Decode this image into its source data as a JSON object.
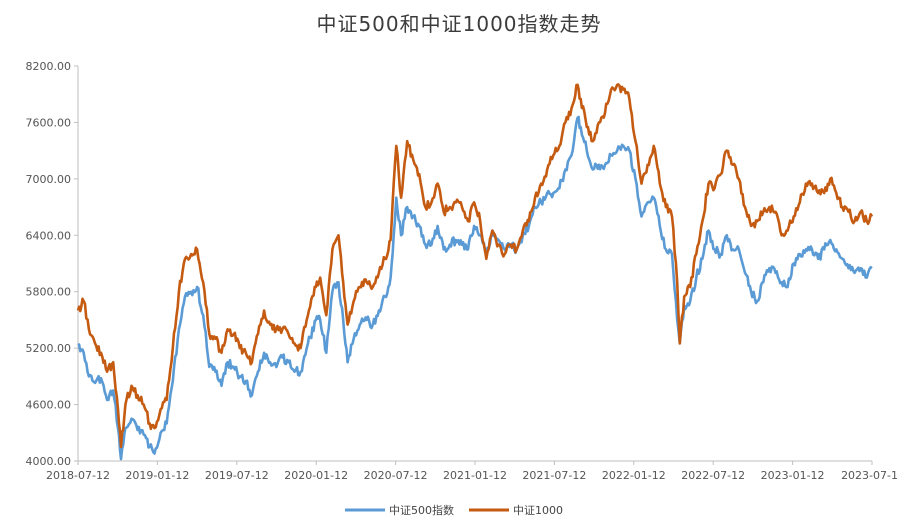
{
  "chart_data": {
    "type": "line",
    "title": "中证500和中证1000指数走势",
    "xlabel": "",
    "ylabel": "",
    "ylim": [
      4000,
      8200
    ],
    "y_ticks": [
      "8200.00",
      "7600.00",
      "7000.00",
      "6400.00",
      "5800.00",
      "5200.00",
      "4600.00",
      "4000.00"
    ],
    "y_tick_values": [
      8200,
      7600,
      7000,
      6400,
      5800,
      5200,
      4600,
      4000
    ],
    "x_ticks": [
      "2018-07-12",
      "2019-01-12",
      "2019-07-12",
      "2020-01-12",
      "2020-07-12",
      "2021-01-12",
      "2021-07-12",
      "2022-01-12",
      "2022-07-12",
      "2023-01-12",
      "2023-07-1"
    ],
    "xlim": [
      "2018-07-12",
      "2023-07-12"
    ],
    "grid": false,
    "legend_position": "bottom",
    "series": [
      {
        "name": "中证500指数",
        "color": "#5b9bd5",
        "points": [
          [
            "2018-07-12",
            5230
          ],
          [
            "2018-07-25",
            5150
          ],
          [
            "2018-08-06",
            4900
          ],
          [
            "2018-08-20",
            4830
          ],
          [
            "2018-09-03",
            4880
          ],
          [
            "2018-09-17",
            4650
          ],
          [
            "2018-10-01",
            4750
          ],
          [
            "2018-10-12",
            4350
          ],
          [
            "2018-10-19",
            4020
          ],
          [
            "2018-10-29",
            4350
          ],
          [
            "2018-11-12",
            4450
          ],
          [
            "2018-11-26",
            4330
          ],
          [
            "2018-12-10",
            4280
          ],
          [
            "2018-12-24",
            4150
          ],
          [
            "2019-01-04",
            4080
          ],
          [
            "2019-01-18",
            4300
          ],
          [
            "2019-02-01",
            4400
          ],
          [
            "2019-02-15",
            4850
          ],
          [
            "2019-03-01",
            5400
          ],
          [
            "2019-03-15",
            5750
          ],
          [
            "2019-03-29",
            5800
          ],
          [
            "2019-04-12",
            5850
          ],
          [
            "2019-04-26",
            5550
          ],
          [
            "2019-05-10",
            5000
          ],
          [
            "2019-05-24",
            4950
          ],
          [
            "2019-06-07",
            4800
          ],
          [
            "2019-06-21",
            5050
          ],
          [
            "2019-07-05",
            5000
          ],
          [
            "2019-07-19",
            4900
          ],
          [
            "2019-08-02",
            4850
          ],
          [
            "2019-08-16",
            4700
          ],
          [
            "2019-08-30",
            4950
          ],
          [
            "2019-09-13",
            5150
          ],
          [
            "2019-09-27",
            5050
          ],
          [
            "2019-10-11",
            5000
          ],
          [
            "2019-10-25",
            5100
          ],
          [
            "2019-11-08",
            5050
          ],
          [
            "2019-11-22",
            4950
          ],
          [
            "2019-12-06",
            4950
          ],
          [
            "2019-12-20",
            5200
          ],
          [
            "2020-01-10",
            5500
          ],
          [
            "2020-01-20",
            5500
          ],
          [
            "2020-02-03",
            5150
          ],
          [
            "2020-02-17",
            5800
          ],
          [
            "2020-03-02",
            5900
          ],
          [
            "2020-03-13",
            5500
          ],
          [
            "2020-03-23",
            5050
          ],
          [
            "2020-04-06",
            5300
          ],
          [
            "2020-04-20",
            5450
          ],
          [
            "2020-05-06",
            5500
          ],
          [
            "2020-05-20",
            5450
          ],
          [
            "2020-06-03",
            5600
          ],
          [
            "2020-06-17",
            5750
          ],
          [
            "2020-06-30",
            5950
          ],
          [
            "2020-07-07",
            6400
          ],
          [
            "2020-07-13",
            6800
          ],
          [
            "2020-07-24",
            6400
          ],
          [
            "2020-08-07",
            6700
          ],
          [
            "2020-08-21",
            6600
          ],
          [
            "2020-09-04",
            6500
          ],
          [
            "2020-09-18",
            6300
          ],
          [
            "2020-10-02",
            6300
          ],
          [
            "2020-10-16",
            6500
          ],
          [
            "2020-10-30",
            6250
          ],
          [
            "2020-11-13",
            6300
          ],
          [
            "2020-11-27",
            6350
          ],
          [
            "2020-12-11",
            6300
          ],
          [
            "2020-12-25",
            6250
          ],
          [
            "2021-01-08",
            6500
          ],
          [
            "2021-01-22",
            6400
          ],
          [
            "2021-02-05",
            6200
          ],
          [
            "2021-02-19",
            6450
          ],
          [
            "2021-03-05",
            6350
          ],
          [
            "2021-03-19",
            6250
          ],
          [
            "2021-04-02",
            6300
          ],
          [
            "2021-04-16",
            6250
          ],
          [
            "2021-04-30",
            6400
          ],
          [
            "2021-05-14",
            6500
          ],
          [
            "2021-05-28",
            6700
          ],
          [
            "2021-06-11",
            6750
          ],
          [
            "2021-06-25",
            6850
          ],
          [
            "2021-07-09",
            6850
          ],
          [
            "2021-07-23",
            6900
          ],
          [
            "2021-08-06",
            7100
          ],
          [
            "2021-08-20",
            7250
          ],
          [
            "2021-09-03",
            7650
          ],
          [
            "2021-09-10",
            7550
          ],
          [
            "2021-09-24",
            7300
          ],
          [
            "2021-10-08",
            7100
          ],
          [
            "2021-10-22",
            7150
          ],
          [
            "2021-11-05",
            7150
          ],
          [
            "2021-11-19",
            7250
          ],
          [
            "2021-12-03",
            7300
          ],
          [
            "2021-12-17",
            7350
          ],
          [
            "2021-12-31",
            7300
          ],
          [
            "2022-01-14",
            7000
          ],
          [
            "2022-01-28",
            6600
          ],
          [
            "2022-02-11",
            6750
          ],
          [
            "2022-02-25",
            6800
          ],
          [
            "2022-03-11",
            6500
          ],
          [
            "2022-03-25",
            6250
          ],
          [
            "2022-04-08",
            6200
          ],
          [
            "2022-04-20",
            5500
          ],
          [
            "2022-04-26",
            5250
          ],
          [
            "2022-05-06",
            5650
          ],
          [
            "2022-05-20",
            5700
          ],
          [
            "2022-06-03",
            5950
          ],
          [
            "2022-06-17",
            6150
          ],
          [
            "2022-07-01",
            6450
          ],
          [
            "2022-07-15",
            6250
          ],
          [
            "2022-07-29",
            6200
          ],
          [
            "2022-08-12",
            6400
          ],
          [
            "2022-08-26",
            6250
          ],
          [
            "2022-09-09",
            6250
          ],
          [
            "2022-09-23",
            6000
          ],
          [
            "2022-10-07",
            5800
          ],
          [
            "2022-10-21",
            5700
          ],
          [
            "2022-11-04",
            5900
          ],
          [
            "2022-11-18",
            6050
          ],
          [
            "2022-12-02",
            6000
          ],
          [
            "2022-12-16",
            5900
          ],
          [
            "2022-12-30",
            5850
          ],
          [
            "2023-01-13",
            6100
          ],
          [
            "2023-01-27",
            6200
          ],
          [
            "2023-02-10",
            6250
          ],
          [
            "2023-02-24",
            6250
          ],
          [
            "2023-03-10",
            6150
          ],
          [
            "2023-03-24",
            6250
          ],
          [
            "2023-04-07",
            6350
          ],
          [
            "2023-04-21",
            6250
          ],
          [
            "2023-05-05",
            6150
          ],
          [
            "2023-05-19",
            6050
          ],
          [
            "2023-06-02",
            6000
          ],
          [
            "2023-06-16",
            6050
          ],
          [
            "2023-06-30",
            5950
          ],
          [
            "2023-07-12",
            6050
          ]
        ]
      },
      {
        "name": "中证1000",
        "color": "#c55a11",
        "points": [
          [
            "2018-07-12",
            5600
          ],
          [
            "2018-07-25",
            5700
          ],
          [
            "2018-08-06",
            5400
          ],
          [
            "2018-08-20",
            5250
          ],
          [
            "2018-09-03",
            5150
          ],
          [
            "2018-09-17",
            4950
          ],
          [
            "2018-10-01",
            5050
          ],
          [
            "2018-10-12",
            4550
          ],
          [
            "2018-10-19",
            4150
          ],
          [
            "2018-10-29",
            4600
          ],
          [
            "2018-11-12",
            4800
          ],
          [
            "2018-11-26",
            4700
          ],
          [
            "2018-12-10",
            4600
          ],
          [
            "2018-12-24",
            4400
          ],
          [
            "2019-01-04",
            4350
          ],
          [
            "2019-01-18",
            4550
          ],
          [
            "2019-02-01",
            4650
          ],
          [
            "2019-02-15",
            5200
          ],
          [
            "2019-03-01",
            5800
          ],
          [
            "2019-03-15",
            6150
          ],
          [
            "2019-03-29",
            6200
          ],
          [
            "2019-04-12",
            6250
          ],
          [
            "2019-04-26",
            5900
          ],
          [
            "2019-05-10",
            5350
          ],
          [
            "2019-05-24",
            5300
          ],
          [
            "2019-06-07",
            5150
          ],
          [
            "2019-06-21",
            5400
          ],
          [
            "2019-07-05",
            5350
          ],
          [
            "2019-07-19",
            5200
          ],
          [
            "2019-08-02",
            5150
          ],
          [
            "2019-08-16",
            5050
          ],
          [
            "2019-08-30",
            5350
          ],
          [
            "2019-09-13",
            5600
          ],
          [
            "2019-09-27",
            5450
          ],
          [
            "2019-10-11",
            5400
          ],
          [
            "2019-10-25",
            5400
          ],
          [
            "2019-11-08",
            5350
          ],
          [
            "2019-11-22",
            5250
          ],
          [
            "2019-12-06",
            5200
          ],
          [
            "2019-12-20",
            5500
          ],
          [
            "2020-01-10",
            5850
          ],
          [
            "2020-01-20",
            5950
          ],
          [
            "2020-02-03",
            5550
          ],
          [
            "2020-02-17",
            6250
          ],
          [
            "2020-03-02",
            6400
          ],
          [
            "2020-03-13",
            5900
          ],
          [
            "2020-03-23",
            5450
          ],
          [
            "2020-04-06",
            5700
          ],
          [
            "2020-04-20",
            5850
          ],
          [
            "2020-05-06",
            5900
          ],
          [
            "2020-05-20",
            5850
          ],
          [
            "2020-06-03",
            6000
          ],
          [
            "2020-06-17",
            6150
          ],
          [
            "2020-06-30",
            6350
          ],
          [
            "2020-07-07",
            6950
          ],
          [
            "2020-07-13",
            7350
          ],
          [
            "2020-07-24",
            6800
          ],
          [
            "2020-08-07",
            7400
          ],
          [
            "2020-08-21",
            7200
          ],
          [
            "2020-09-04",
            7050
          ],
          [
            "2020-09-18",
            6700
          ],
          [
            "2020-10-02",
            6750
          ],
          [
            "2020-10-16",
            6950
          ],
          [
            "2020-10-30",
            6650
          ],
          [
            "2020-11-13",
            6700
          ],
          [
            "2020-11-27",
            6750
          ],
          [
            "2020-12-11",
            6700
          ],
          [
            "2020-12-25",
            6550
          ],
          [
            "2021-01-08",
            6750
          ],
          [
            "2021-01-22",
            6550
          ],
          [
            "2021-02-05",
            6150
          ],
          [
            "2021-02-19",
            6450
          ],
          [
            "2021-03-05",
            6300
          ],
          [
            "2021-03-19",
            6200
          ],
          [
            "2021-04-02",
            6300
          ],
          [
            "2021-04-16",
            6250
          ],
          [
            "2021-04-30",
            6450
          ],
          [
            "2021-05-14",
            6550
          ],
          [
            "2021-05-28",
            6800
          ],
          [
            "2021-06-11",
            6950
          ],
          [
            "2021-06-25",
            7100
          ],
          [
            "2021-07-09",
            7250
          ],
          [
            "2021-07-23",
            7350
          ],
          [
            "2021-08-06",
            7600
          ],
          [
            "2021-08-20",
            7750
          ],
          [
            "2021-09-03",
            8000
          ],
          [
            "2021-09-10",
            7850
          ],
          [
            "2021-09-24",
            7550
          ],
          [
            "2021-10-08",
            7400
          ],
          [
            "2021-10-22",
            7600
          ],
          [
            "2021-11-05",
            7700
          ],
          [
            "2021-11-19",
            7950
          ],
          [
            "2021-12-03",
            8000
          ],
          [
            "2021-12-17",
            7950
          ],
          [
            "2021-12-31",
            7850
          ],
          [
            "2022-01-14",
            7400
          ],
          [
            "2022-01-28",
            6950
          ],
          [
            "2022-02-11",
            7150
          ],
          [
            "2022-02-25",
            7350
          ],
          [
            "2022-03-11",
            6950
          ],
          [
            "2022-03-25",
            6700
          ],
          [
            "2022-04-08",
            6600
          ],
          [
            "2022-04-20",
            5900
          ],
          [
            "2022-04-26",
            5250
          ],
          [
            "2022-05-06",
            5750
          ],
          [
            "2022-05-20",
            5850
          ],
          [
            "2022-06-03",
            6200
          ],
          [
            "2022-06-17",
            6550
          ],
          [
            "2022-07-01",
            6950
          ],
          [
            "2022-07-15",
            6900
          ],
          [
            "2022-07-29",
            7050
          ],
          [
            "2022-08-12",
            7300
          ],
          [
            "2022-08-26",
            7150
          ],
          [
            "2022-09-09",
            7000
          ],
          [
            "2022-09-23",
            6700
          ],
          [
            "2022-10-07",
            6500
          ],
          [
            "2022-10-21",
            6550
          ],
          [
            "2022-11-04",
            6650
          ],
          [
            "2022-11-18",
            6700
          ],
          [
            "2022-12-02",
            6650
          ],
          [
            "2022-12-16",
            6400
          ],
          [
            "2022-12-30",
            6450
          ],
          [
            "2023-01-13",
            6600
          ],
          [
            "2023-01-27",
            6750
          ],
          [
            "2023-02-10",
            6950
          ],
          [
            "2023-02-24",
            6950
          ],
          [
            "2023-03-10",
            6850
          ],
          [
            "2023-03-24",
            6850
          ],
          [
            "2023-04-07",
            7000
          ],
          [
            "2023-04-21",
            6850
          ],
          [
            "2023-05-05",
            6700
          ],
          [
            "2023-05-19",
            6650
          ],
          [
            "2023-06-02",
            6550
          ],
          [
            "2023-06-16",
            6650
          ],
          [
            "2023-06-30",
            6550
          ],
          [
            "2023-07-12",
            6600
          ]
        ]
      }
    ]
  }
}
